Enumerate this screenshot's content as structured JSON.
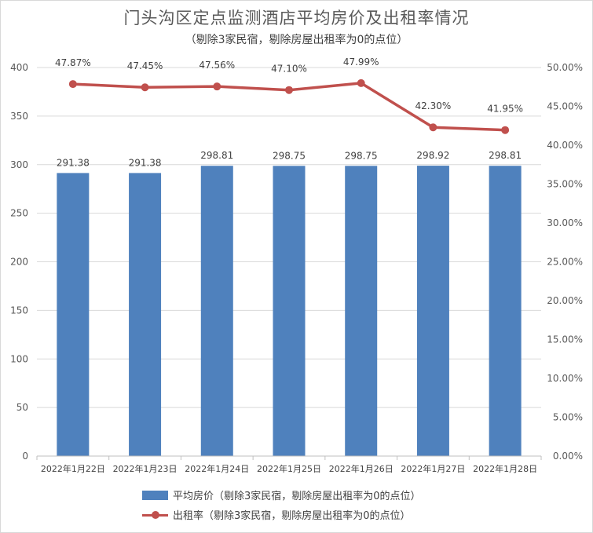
{
  "chart_data": {
    "type": "bar",
    "title": "门头沟区定点监测酒店平均房价及出租率情况",
    "subtitle": "（剔除3家民宿，剔除房屋出租率为0的点位）",
    "categories": [
      "2022年1月22日",
      "2022年1月23日",
      "2022年1月24日",
      "2022年1月25日",
      "2022年1月26日",
      "2022年1月27日",
      "2022年1月28日"
    ],
    "series": [
      {
        "name": "平均房价（剔除3家民宿，剔除房屋出租率为0的点位）",
        "type": "bar",
        "axis": "left",
        "color": "#4f81bd",
        "values": [
          291.38,
          291.38,
          298.81,
          298.75,
          298.75,
          298.92,
          298.81
        ],
        "labels": [
          "291.38",
          "291.38",
          "298.81",
          "298.75",
          "298.75",
          "298.92",
          "298.81"
        ]
      },
      {
        "name": "出租率（剔除3家民宿，剔除房屋出租率为0的点位）",
        "type": "line",
        "axis": "right",
        "color": "#c0504d",
        "values": [
          47.87,
          47.45,
          47.56,
          47.1,
          47.99,
          42.3,
          41.95
        ],
        "labels": [
          "47.87%",
          "47.45%",
          "47.56%",
          "47.10%",
          "47.99%",
          "42.30%",
          "41.95%"
        ]
      }
    ],
    "yleft": {
      "min": 0,
      "max": 400,
      "ticks": [
        "0",
        "50",
        "100",
        "150",
        "200",
        "250",
        "300",
        "350",
        "400"
      ]
    },
    "yright": {
      "min": 0,
      "max": 50,
      "unit": "%",
      "ticks": [
        "0.00%",
        "5.00%",
        "10.00%",
        "15.00%",
        "20.00%",
        "25.00%",
        "30.00%",
        "35.00%",
        "40.00%",
        "45.00%",
        "50.00%"
      ]
    },
    "grid": true,
    "legend_position": "bottom"
  }
}
